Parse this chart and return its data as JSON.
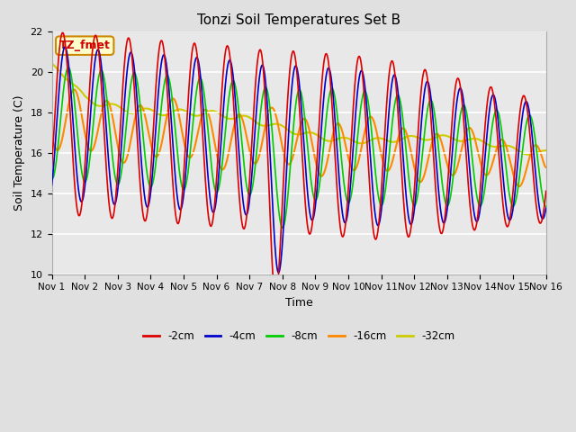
{
  "title": "Tonzi Soil Temperatures Set B",
  "xlabel": "Time",
  "ylabel": "Soil Temperature (C)",
  "ylim": [
    10,
    22
  ],
  "xlim": [
    0,
    15
  ],
  "xtick_labels": [
    "Nov 1",
    "Nov 2",
    "Nov 3",
    "Nov 4",
    "Nov 5",
    "Nov 6",
    "Nov 7",
    "Nov 8",
    "Nov 9",
    "Nov 10",
    "Nov 11",
    "Nov 12",
    "Nov 13",
    "Nov 14",
    "Nov 15",
    "Nov 16"
  ],
  "xtick_positions": [
    0,
    1,
    2,
    3,
    4,
    5,
    6,
    7,
    8,
    9,
    10,
    11,
    12,
    13,
    14,
    15
  ],
  "ytick_positions": [
    10,
    12,
    14,
    16,
    18,
    20,
    22
  ],
  "colors": {
    "-2cm": "#dd0000",
    "-4cm": "#0000cc",
    "-8cm": "#00cc00",
    "-16cm": "#ff8800",
    "-32cm": "#cccc00"
  },
  "legend_labels": [
    "-2cm",
    "-4cm",
    "-8cm",
    "-16cm",
    "-32cm"
  ],
  "annotation_text": "TZ_fmet",
  "annotation_color": "#cc0000",
  "annotation_bg": "#ffffcc",
  "annotation_border": "#cc8800",
  "background_color": "#e0e0e0",
  "plot_bg_color": "#e8e8e8",
  "grid_color": "white",
  "figsize": [
    6.4,
    4.8
  ],
  "dpi": 100
}
